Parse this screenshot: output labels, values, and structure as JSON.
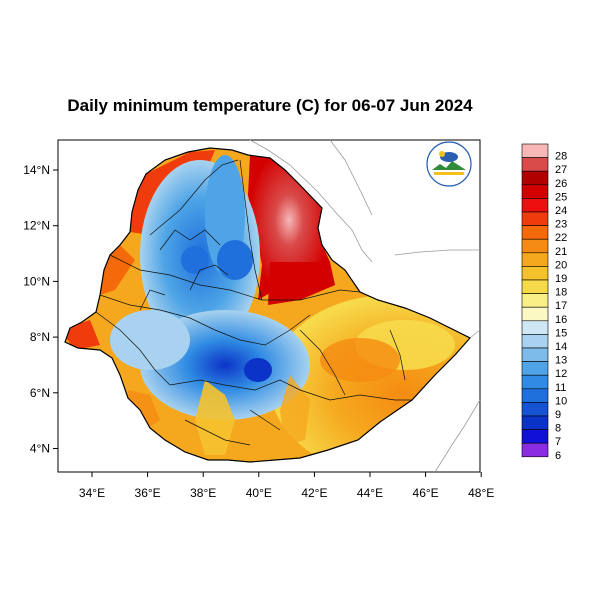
{
  "title": "Daily minimum temperature (C) for 06-07 Jun 2024",
  "map": {
    "lon_range": [
      33,
      48.3
    ],
    "lat_range": [
      3.2,
      15
    ],
    "lon_ticks": [
      "34°E",
      "36°E",
      "38°E",
      "40°E",
      "42°E",
      "44°E",
      "46°E",
      "48°E"
    ],
    "lat_ticks": [
      "14°N",
      "12°N",
      "10°N",
      "8°N",
      "6°N",
      "4°N"
    ],
    "logo": "ethiopian-meteorology-institute-logo"
  },
  "colorbar": {
    "labels": [
      "28",
      "27",
      "26",
      "25",
      "24",
      "23",
      "22",
      "21",
      "20",
      "19",
      "18",
      "17",
      "16",
      "15",
      "14",
      "13",
      "12",
      "11",
      "10",
      "9",
      "8",
      "7",
      "6"
    ],
    "colors": [
      "#f7b7b7",
      "#d94a4a",
      "#b00000",
      "#d40000",
      "#ee1010",
      "#f03c0c",
      "#f46a0a",
      "#f58b12",
      "#f5a81e",
      "#f5c22c",
      "#f7da4a",
      "#faee86",
      "#fcf8c4",
      "#cfe6f5",
      "#a8d2ef",
      "#7cbbea",
      "#4ea4e6",
      "#2f8be3",
      "#1f6fdc",
      "#1553d3",
      "#0c33c8",
      "#1010d8",
      "#8b2be2"
    ]
  }
}
